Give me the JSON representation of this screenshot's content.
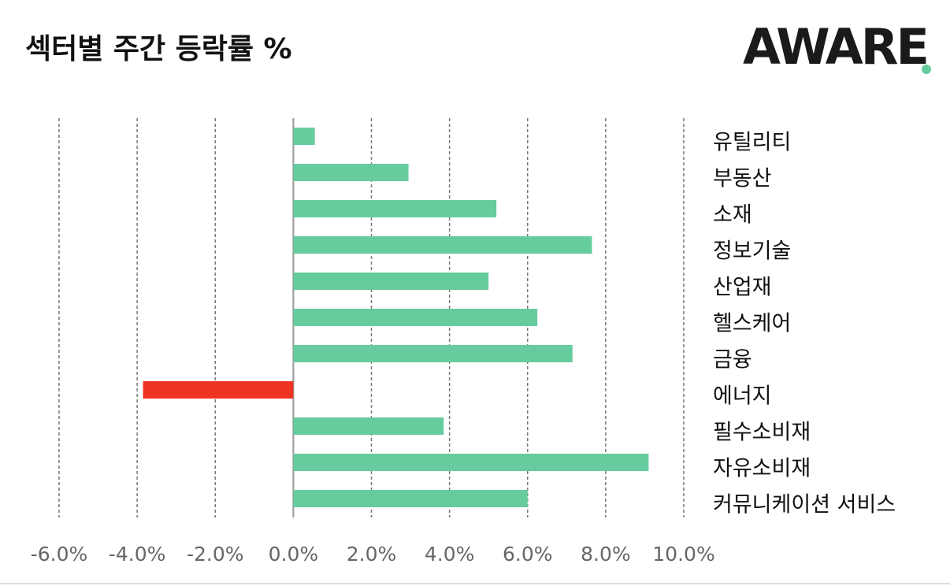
{
  "chart_data": {
    "type": "hbar",
    "title": "섹터별 주간 등락률 %",
    "logo": "AWARE",
    "categories": [
      "유틸리티",
      "부동산",
      "소재",
      "정보기술",
      "산업재",
      "헬스케어",
      "금융",
      "에너지",
      "필수소비재",
      "자유소비재",
      "커뮤니케이션 서비스"
    ],
    "values": [
      0.55,
      2.95,
      5.2,
      7.65,
      5.0,
      6.25,
      7.15,
      -3.85,
      3.85,
      9.1,
      6.0
    ],
    "colors": [
      "#66cc9e",
      "#66cc9e",
      "#66cc9e",
      "#66cc9e",
      "#66cc9e",
      "#66cc9e",
      "#66cc9e",
      "#ee3322",
      "#66cc9e",
      "#66cc9e",
      "#66cc9e"
    ],
    "xlim": [
      -6,
      10
    ],
    "xticks": [
      {
        "value": -6,
        "label": "-6.0%"
      },
      {
        "value": -4,
        "label": "-4.0%"
      },
      {
        "value": -2,
        "label": "-2.0%"
      },
      {
        "value": 0,
        "label": "0.0%"
      },
      {
        "value": 2,
        "label": "2.0%"
      },
      {
        "value": 4,
        "label": "4.0%"
      },
      {
        "value": 6,
        "label": "6.0%"
      },
      {
        "value": 8,
        "label": "8.0%"
      },
      {
        "value": 10,
        "label": "10.0%"
      }
    ],
    "grid": true
  }
}
